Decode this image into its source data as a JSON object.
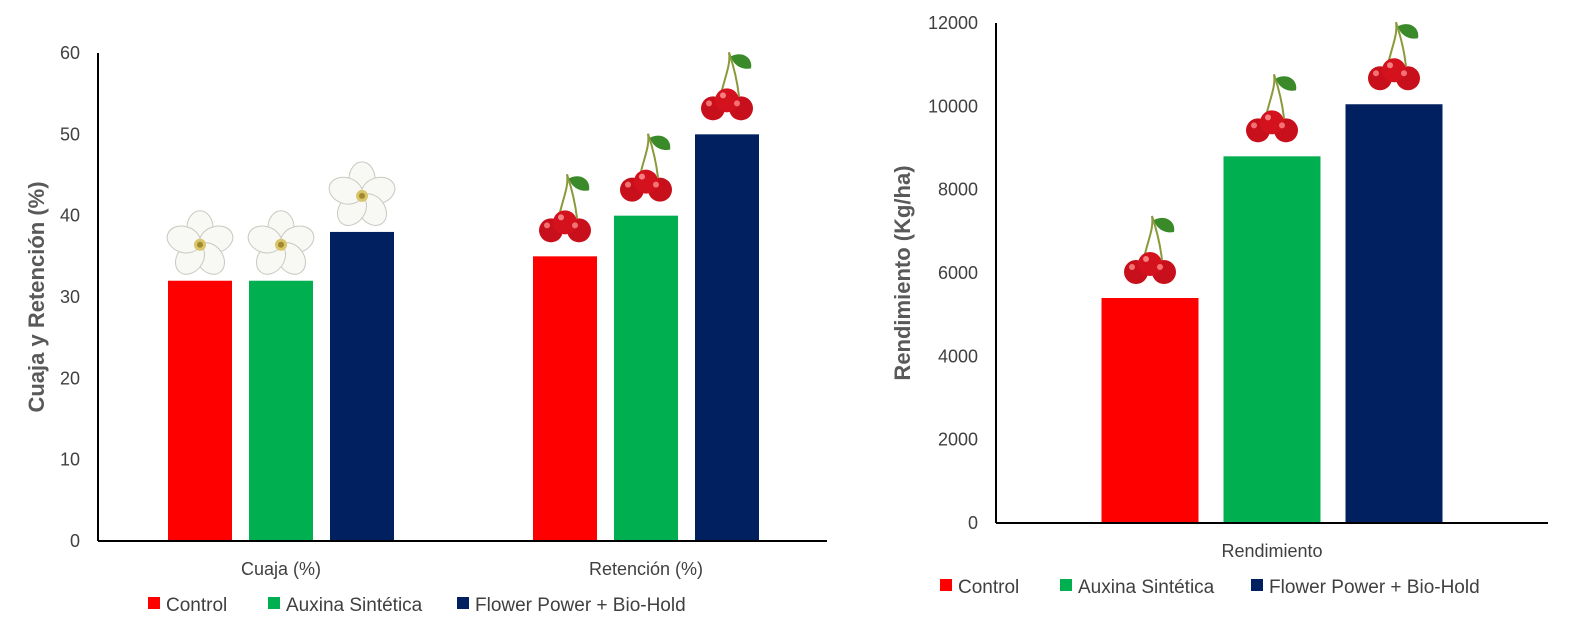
{
  "chart_data": [
    {
      "type": "bar",
      "categories": [
        "Cuaja (%)",
        "Retención (%)"
      ],
      "series": [
        {
          "name": "Control",
          "values": [
            32,
            35
          ]
        },
        {
          "name": "Auxina Sintética",
          "values": [
            32,
            40
          ]
        },
        {
          "name": "Flower Power + Bio-Hold",
          "values": [
            38,
            50
          ]
        }
      ],
      "title": "",
      "xlabel": "",
      "ylabel": "Cuaja y Retención (%)",
      "ylim": [
        0,
        60
      ],
      "yticks": [
        "0",
        "10",
        "20",
        "30",
        "40",
        "50",
        "60"
      ],
      "grid": false,
      "legend": "bottom",
      "colors": [
        "#ff0000",
        "#00b050",
        "#002060"
      ],
      "bar_icons": [
        [
          "flower-icon",
          "flower-icon",
          "flower-icon"
        ],
        [
          "cherry-icon",
          "cherry-icon",
          "cherry-icon"
        ]
      ]
    },
    {
      "type": "bar",
      "categories": [
        "Rendimiento"
      ],
      "series": [
        {
          "name": "Control",
          "values": [
            5400
          ]
        },
        {
          "name": "Auxina Sintética",
          "values": [
            8800
          ]
        },
        {
          "name": "Flower Power + Bio-Hold",
          "values": [
            10050
          ]
        }
      ],
      "title": "",
      "xlabel": "",
      "ylabel": "Rendimiento (Kg/ha)",
      "ylim": [
        0,
        12000
      ],
      "yticks": [
        "0",
        "2000",
        "4000",
        "6000",
        "8000",
        "10000",
        "12000"
      ],
      "grid": false,
      "legend": "bottom",
      "colors": [
        "#ff0000",
        "#00b050",
        "#002060"
      ],
      "bar_icons": [
        [
          "cherry-icon",
          "cherry-icon",
          "cherry-icon"
        ]
      ]
    }
  ]
}
